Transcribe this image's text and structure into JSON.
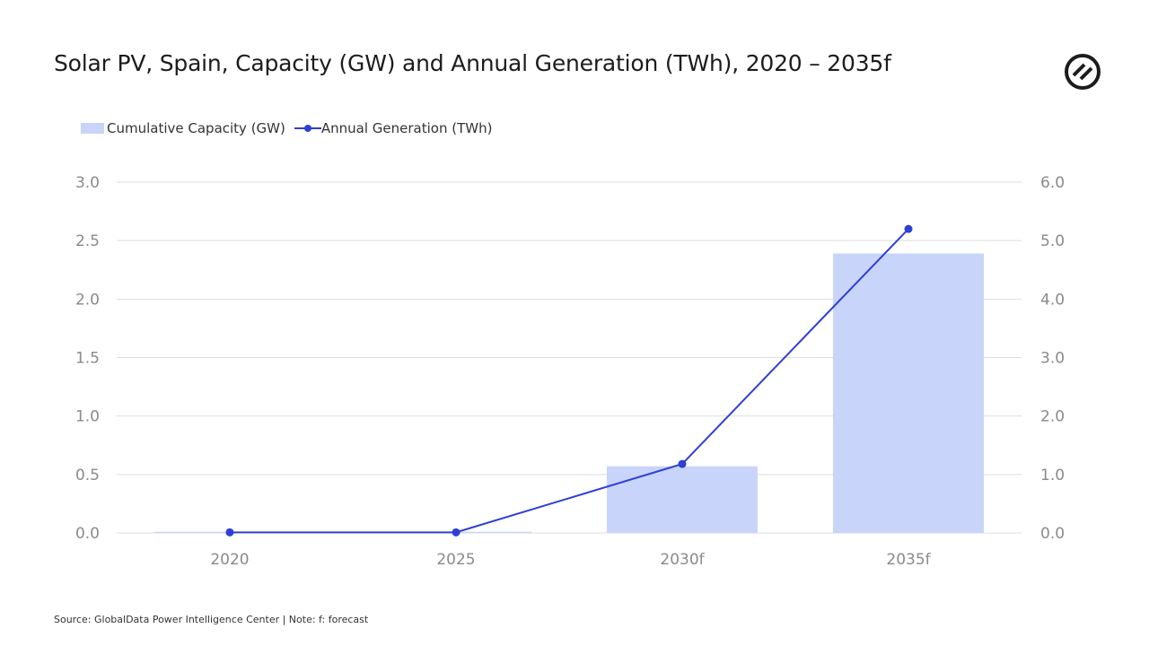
{
  "title": "Solar PV, Spain, Capacity (GW) and Annual Generation (TWh), 2020 – 2035f",
  "logo_icon": "globaldata-logo-icon",
  "legend": {
    "bar_label": "Cumulative Capacity (GW)",
    "line_label": "Annual Generation (TWh)"
  },
  "source": "Source: GlobalData Power Intelligence Center | Note: f: forecast",
  "colors": {
    "bar": "#c8d4fa",
    "line": "#2f3fd6",
    "grid": "#dedede",
    "tick": "#8a8a8a"
  },
  "chart_data": {
    "type": "bar",
    "categories": [
      "2020",
      "2025",
      "2030f",
      "2035f"
    ],
    "series": [
      {
        "name": "Cumulative Capacity (GW)",
        "type": "bar",
        "axis": "left",
        "values": [
          0.01,
          0.01,
          0.57,
          2.39
        ]
      },
      {
        "name": "Annual Generation (TWh)",
        "type": "line",
        "axis": "right",
        "values": [
          0.01,
          0.01,
          1.18,
          5.2
        ]
      }
    ],
    "y_left": {
      "ylim": [
        0,
        3.0
      ],
      "ticks": [
        "0.0",
        "0.5",
        "1.0",
        "1.5",
        "2.0",
        "2.5",
        "3.0"
      ]
    },
    "y_right": {
      "ylim": [
        0,
        6.0
      ],
      "ticks": [
        "0.0",
        "1.0",
        "2.0",
        "3.0",
        "4.0",
        "5.0",
        "6.0"
      ]
    },
    "grid": true,
    "legend_position": "top-left"
  }
}
